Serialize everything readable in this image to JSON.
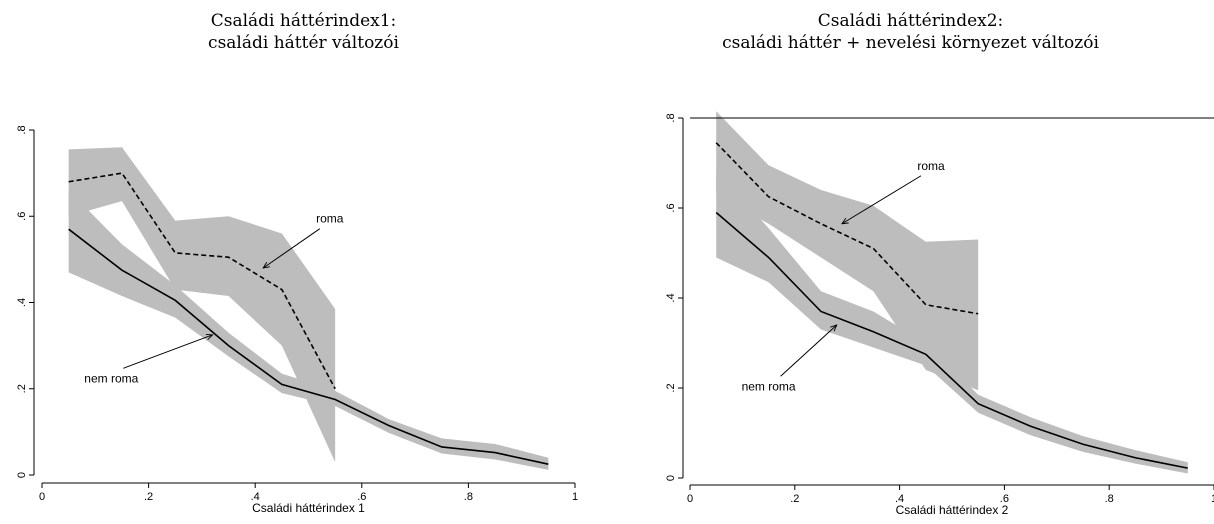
{
  "chart_data": [
    {
      "type": "line",
      "title": "Családi háttérindex1:",
      "subtitle": "családi háttér változói",
      "xlabel": "Családi háttérindex 1",
      "ylabel": "",
      "xlim": [
        0,
        1
      ],
      "ylim": [
        0,
        0.8
      ],
      "x_ticks": [
        "0",
        ".2",
        ".4",
        ".6",
        ".8",
        "1"
      ],
      "y_ticks": [
        "0",
        ".2",
        ".4",
        ".6",
        ".8"
      ],
      "grid": false,
      "series": [
        {
          "name": "nem roma",
          "style": "solid",
          "x": [
            0.05,
            0.15,
            0.25,
            0.35,
            0.45,
            0.55,
            0.65,
            0.75,
            0.85,
            0.95
          ],
          "y": [
            0.57,
            0.475,
            0.405,
            0.3,
            0.21,
            0.175,
            0.115,
            0.065,
            0.052,
            0.025
          ],
          "ci_low": [
            0.47,
            0.415,
            0.365,
            0.275,
            0.19,
            0.16,
            0.098,
            0.05,
            0.036,
            0.012
          ],
          "ci_high": [
            0.66,
            0.535,
            0.44,
            0.33,
            0.235,
            0.195,
            0.13,
            0.085,
            0.072,
            0.04
          ]
        },
        {
          "name": "roma",
          "style": "dashed",
          "x": [
            0.05,
            0.15,
            0.25,
            0.35,
            0.45,
            0.55
          ],
          "y": [
            0.68,
            0.7,
            0.515,
            0.505,
            0.43,
            0.2
          ],
          "ci_low": [
            0.6,
            0.635,
            0.43,
            0.415,
            0.3,
            0.03
          ],
          "ci_high": [
            0.755,
            0.76,
            0.59,
            0.6,
            0.56,
            0.385
          ]
        }
      ],
      "annotations": [
        {
          "text": "roma",
          "x": 0.54,
          "y": 0.585,
          "arrow_to": [
            0.415,
            0.48
          ]
        },
        {
          "text": "nem roma",
          "x": 0.13,
          "y": 0.215,
          "arrow_to": [
            0.32,
            0.325
          ]
        }
      ]
    },
    {
      "type": "line",
      "title": "Családi háttérindex2:",
      "subtitle": "családi háttér + nevelési környezet változói",
      "xlabel": "Családi háttérindex 2",
      "ylabel": "",
      "xlim": [
        0,
        1
      ],
      "ylim": [
        0,
        0.8
      ],
      "x_ticks": [
        "0",
        ".2",
        ".4",
        ".6",
        ".8",
        "1"
      ],
      "y_ticks": [
        "0",
        ".2",
        ".4",
        ".6",
        ".8"
      ],
      "grid": false,
      "series": [
        {
          "name": "nem roma",
          "style": "solid",
          "x": [
            0.05,
            0.15,
            0.25,
            0.35,
            0.45,
            0.55,
            0.65,
            0.75,
            0.85,
            0.95
          ],
          "y": [
            0.59,
            0.49,
            0.37,
            0.325,
            0.275,
            0.165,
            0.115,
            0.075,
            0.045,
            0.022
          ],
          "ci_low": [
            0.49,
            0.435,
            0.33,
            0.29,
            0.25,
            0.145,
            0.095,
            0.058,
            0.032,
            0.01
          ],
          "ci_high": [
            0.685,
            0.555,
            0.415,
            0.37,
            0.3,
            0.185,
            0.135,
            0.093,
            0.062,
            0.035
          ]
        },
        {
          "name": "roma",
          "style": "dashed",
          "x": [
            0.05,
            0.15,
            0.25,
            0.35,
            0.45,
            0.55
          ],
          "y": [
            0.745,
            0.625,
            0.565,
            0.51,
            0.385,
            0.365
          ],
          "ci_low": [
            0.63,
            0.565,
            0.49,
            0.415,
            0.24,
            0.195
          ],
          "ci_high": [
            0.815,
            0.695,
            0.64,
            0.605,
            0.525,
            0.53
          ]
        }
      ],
      "annotations": [
        {
          "text": "roma",
          "x": 0.46,
          "y": 0.685,
          "arrow_to": [
            0.29,
            0.565
          ]
        },
        {
          "text": "nem roma",
          "x": 0.15,
          "y": 0.195,
          "arrow_to": [
            0.28,
            0.34
          ]
        }
      ]
    }
  ]
}
